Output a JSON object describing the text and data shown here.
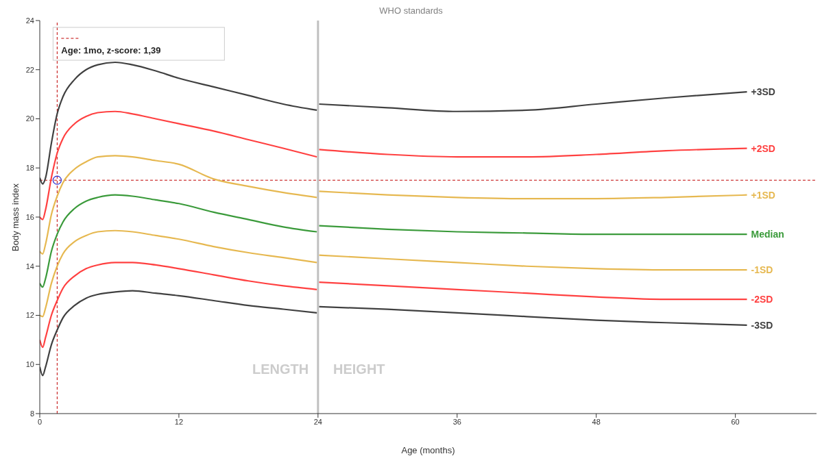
{
  "chart_data": {
    "type": "line",
    "title": "WHO standards",
    "xlabel": "Age (months)",
    "ylabel": "Body mass index",
    "x": [
      0,
      0.25,
      0.5,
      1,
      1.5,
      2,
      3,
      4,
      5,
      6.5,
      8,
      10,
      12,
      15,
      18,
      21,
      23.9,
      24,
      24.1,
      30,
      36,
      42,
      48,
      54,
      61
    ],
    "series": [
      {
        "name": "+3SD",
        "color": "#404040",
        "values": [
          17.6,
          17.35,
          17.6,
          19.0,
          20.2,
          20.9,
          21.6,
          22.0,
          22.2,
          22.3,
          22.2,
          21.95,
          21.65,
          21.3,
          20.95,
          20.6,
          20.35,
          null,
          20.6,
          20.45,
          20.3,
          20.35,
          20.6,
          20.85,
          21.1
        ]
      },
      {
        "name": "+2SD",
        "color": "#ff4040",
        "values": [
          16.0,
          15.9,
          16.3,
          17.6,
          18.6,
          19.2,
          19.8,
          20.1,
          20.25,
          20.3,
          20.2,
          20.0,
          19.8,
          19.5,
          19.15,
          18.8,
          18.45,
          null,
          18.75,
          18.55,
          18.45,
          18.45,
          18.55,
          18.7,
          18.8
        ]
      },
      {
        "name": "+1SD",
        "color": "#e6b850",
        "values": [
          14.6,
          14.5,
          14.9,
          16.1,
          16.85,
          17.4,
          17.95,
          18.25,
          18.45,
          18.5,
          18.45,
          18.3,
          18.15,
          17.55,
          17.25,
          17.0,
          16.8,
          null,
          17.05,
          16.9,
          16.8,
          16.75,
          16.75,
          16.8,
          16.9
        ]
      },
      {
        "name": "Median",
        "color": "#3a9a3a",
        "values": [
          13.3,
          13.15,
          13.5,
          14.6,
          15.3,
          15.8,
          16.35,
          16.65,
          16.8,
          16.9,
          16.85,
          16.7,
          16.55,
          16.2,
          15.9,
          15.6,
          15.4,
          null,
          15.65,
          15.5,
          15.4,
          15.35,
          15.3,
          15.3,
          15.3
        ]
      },
      {
        "name": "-1SD",
        "color": "#e6b850",
        "values": [
          12.0,
          11.95,
          12.3,
          13.3,
          14.0,
          14.5,
          15.0,
          15.25,
          15.4,
          15.45,
          15.4,
          15.25,
          15.1,
          14.8,
          14.55,
          14.35,
          14.15,
          null,
          14.45,
          14.3,
          14.15,
          14.0,
          13.9,
          13.85,
          13.85
        ]
      },
      {
        "name": "-2SD",
        "color": "#ff4040",
        "values": [
          11.0,
          10.7,
          11.1,
          12.0,
          12.6,
          13.1,
          13.6,
          13.9,
          14.05,
          14.15,
          14.15,
          14.05,
          13.9,
          13.65,
          13.4,
          13.2,
          13.05,
          null,
          13.35,
          13.2,
          13.05,
          12.9,
          12.75,
          12.65,
          12.65
        ]
      },
      {
        "name": "-3SD",
        "color": "#404040",
        "values": [
          9.9,
          9.55,
          9.9,
          10.8,
          11.4,
          11.9,
          12.4,
          12.7,
          12.85,
          12.95,
          13.0,
          12.9,
          12.8,
          12.6,
          12.4,
          12.25,
          12.1,
          null,
          12.35,
          12.25,
          12.1,
          11.95,
          11.8,
          11.7,
          11.6
        ]
      },
      {
        "type": "scatter",
        "color": "#2b2bd0",
        "marker": "circle",
        "x": [
          1.5
        ],
        "values": [
          17.5
        ]
      }
    ],
    "xlim": [
      0,
      67
    ],
    "xticks": [
      0,
      12,
      24,
      36,
      48,
      60
    ],
    "ylim": [
      8,
      24
    ],
    "yticks": [
      8,
      10,
      12,
      14,
      16,
      18,
      20,
      22,
      24
    ],
    "grid": false,
    "legend": "top left",
    "marker": "none",
    "line_style": "solid",
    "ref_lines": [
      {
        "axis": "x",
        "value": 1.5,
        "label": "Age: 1mo, z-score: 1,39",
        "color": "#c00000",
        "line_style": "dashed"
      },
      {
        "axis": "y",
        "value": 17.5,
        "color": "#c00000",
        "line_style": "dashed"
      },
      {
        "axis": "x",
        "value": 24,
        "color": "#c0c0c0",
        "line_style": "solid"
      }
    ],
    "annotations": [
      "LENGTH",
      "HEIGHT"
    ]
  }
}
